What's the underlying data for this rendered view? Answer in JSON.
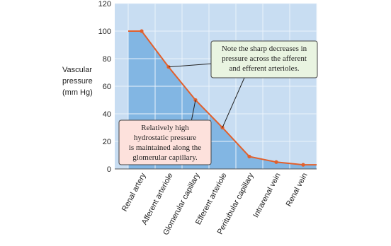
{
  "chart_data": {
    "type": "line",
    "ylabel": [
      "Vascular",
      "pressure",
      "(mm Hg)"
    ],
    "categories": [
      "Renal artery",
      "Afferent arteriole",
      "Glomerular capillary",
      "Efferent arteriole",
      "Peritubular capillary",
      "Intrarenal vein",
      "Renal vein"
    ],
    "series": [
      {
        "name": "Vascular pressure",
        "color": "#e2602c",
        "values": [
          100,
          74,
          50,
          30,
          9,
          5,
          3
        ]
      }
    ],
    "ylim": [
      0,
      120
    ],
    "yticks": [
      0,
      20,
      40,
      60,
      80,
      100,
      120
    ],
    "grid": true,
    "annotations": [
      {
        "lines": [
          "Note the sharp decreases in",
          "pressure across the afferent",
          "and efferent arterioles."
        ],
        "color": "#e9f4e1",
        "points": [
          1,
          3
        ]
      },
      {
        "lines": [
          "Relatively high",
          "hydrostatic pressure",
          "is maintained along the",
          "glomerular capillary."
        ],
        "color": "#fde1dc",
        "points": [
          2
        ]
      }
    ]
  }
}
